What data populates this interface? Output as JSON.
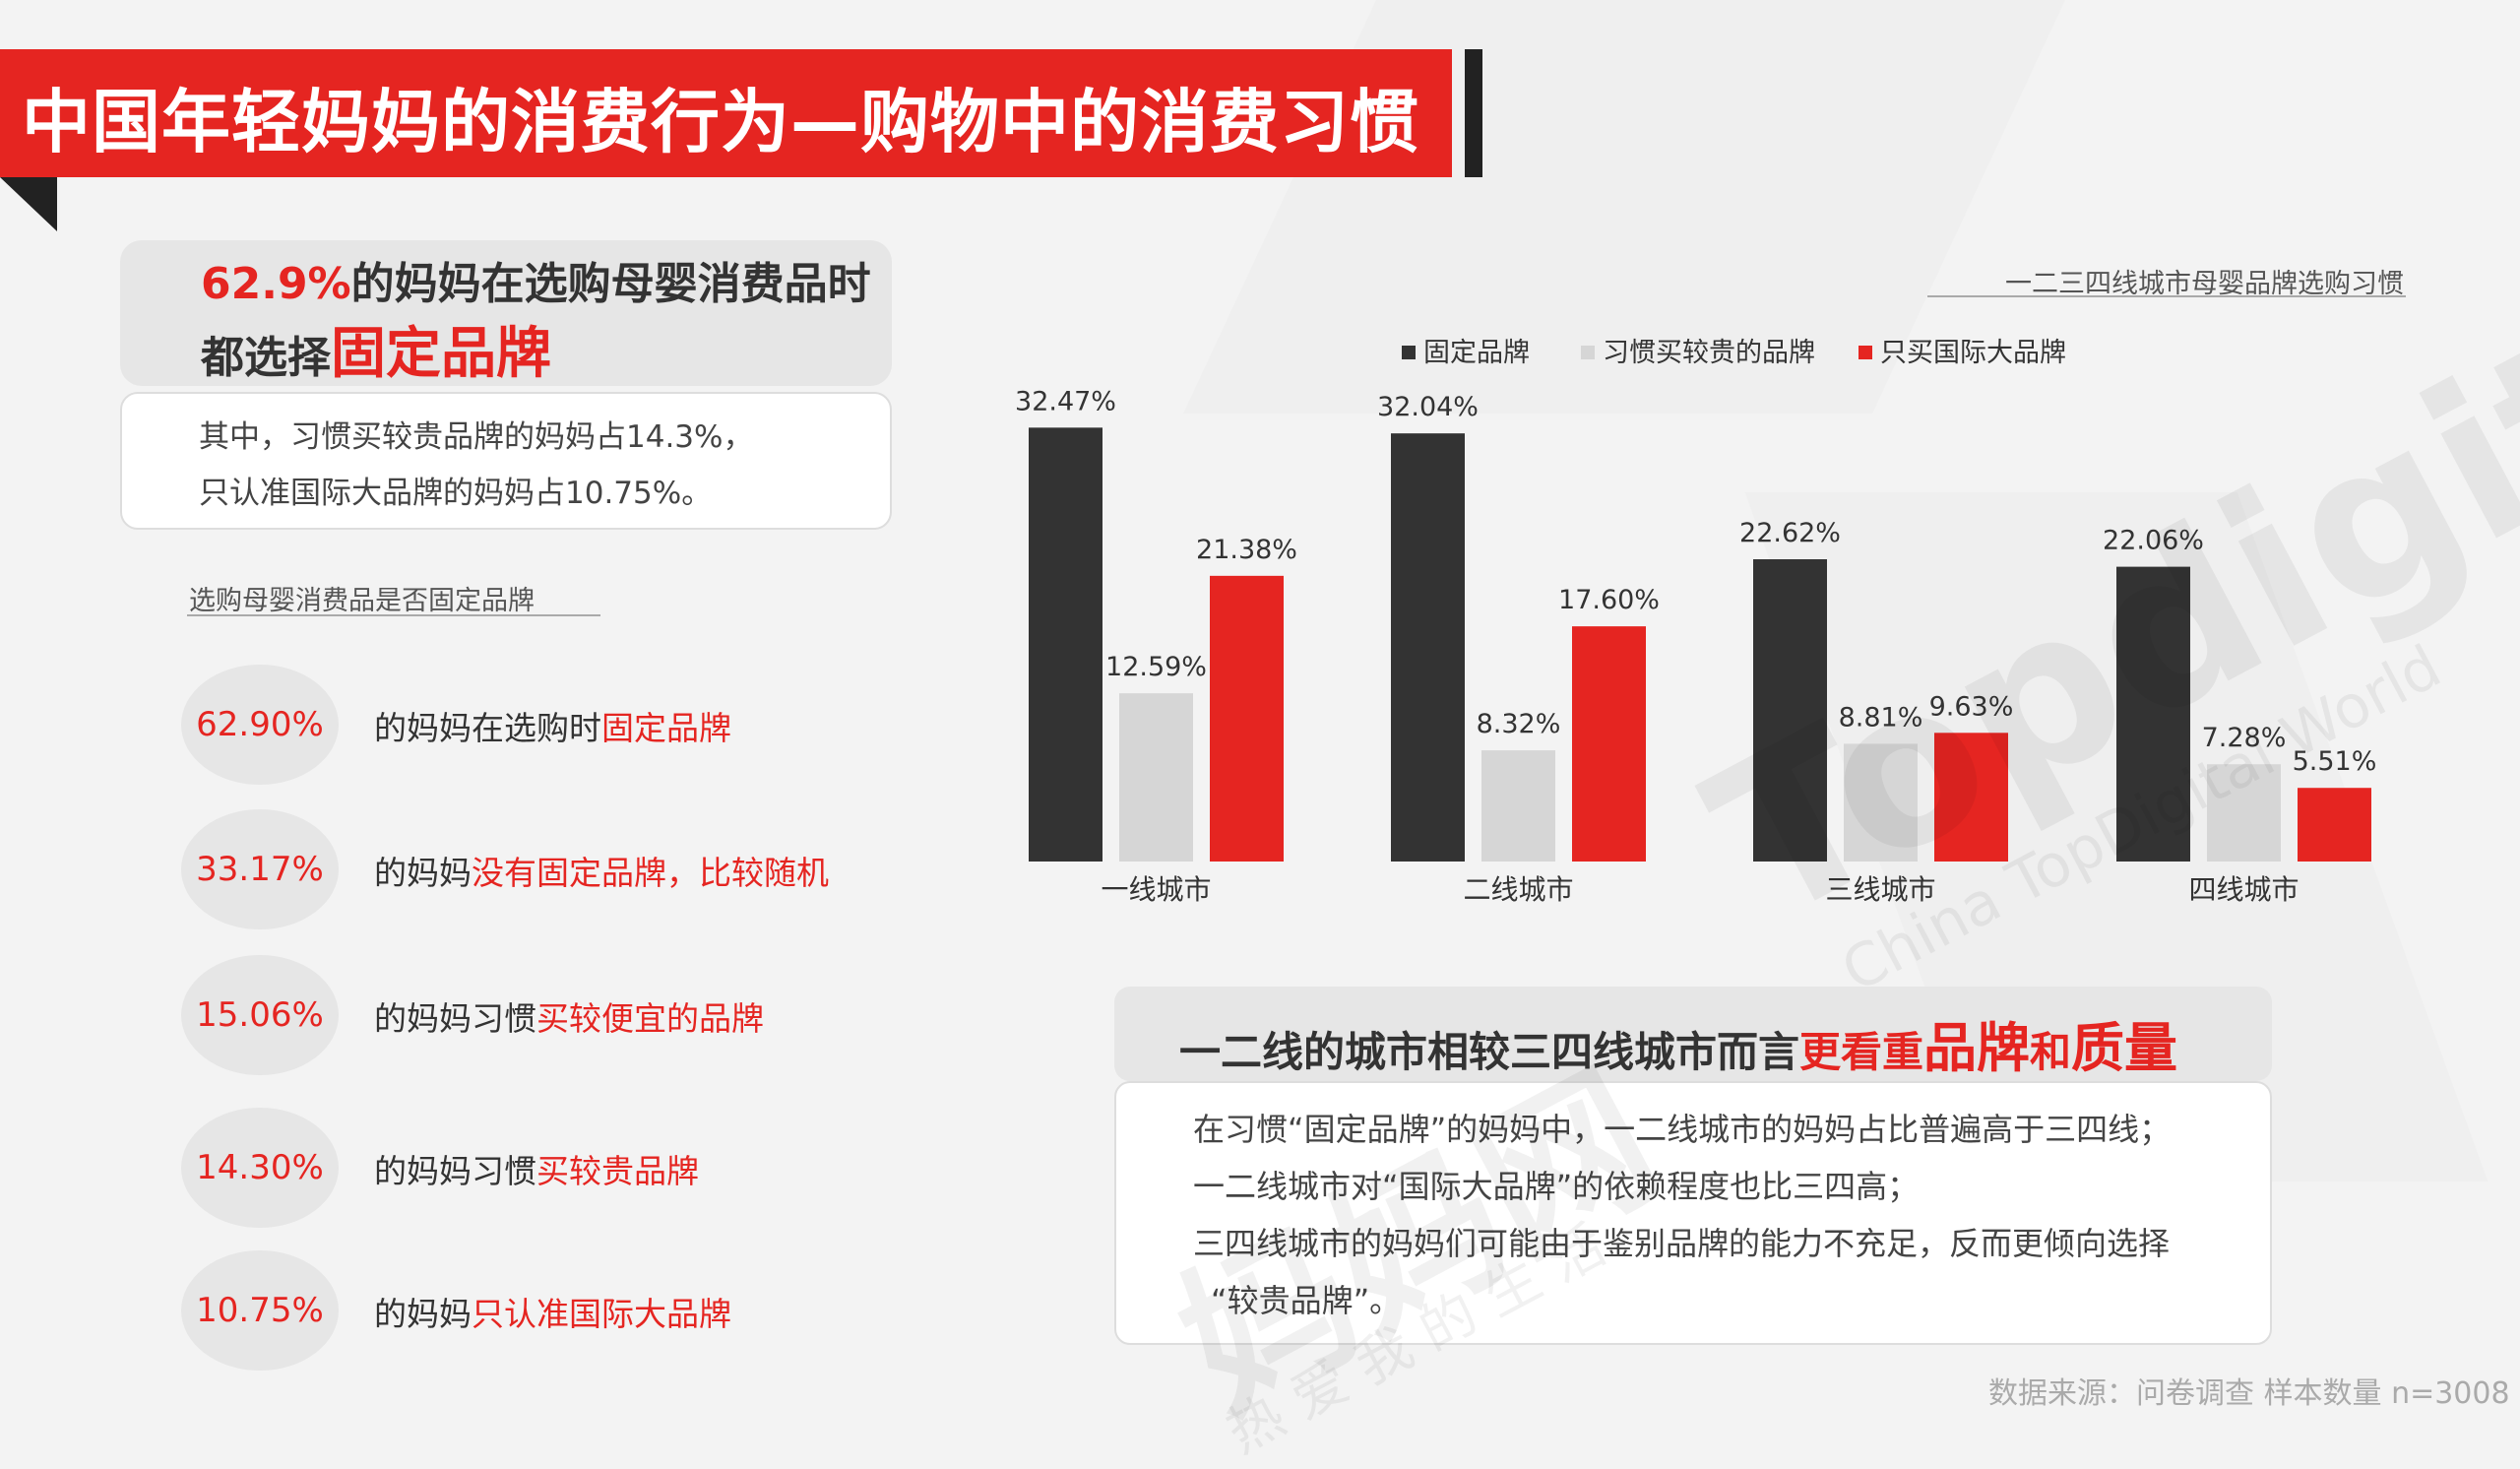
{
  "header": {
    "title": "中国年轻妈妈的消费行为—购物中的消费习惯"
  },
  "highlight": {
    "pct": "62.9%",
    "line1_rest": "的妈妈在选购母婴消费品时",
    "line2_prefix": "都选择",
    "line2_red": "固定品牌",
    "sub_line1": "其中，习惯买较贵品牌的妈妈占14.3%，",
    "sub_line2": "只认准国际大品牌的妈妈占10.75%。"
  },
  "left_section": {
    "label": "选购母婴消费品是否固定品牌",
    "items": [
      {
        "value": "62.90%",
        "prefix": "的妈妈在选购时",
        "red": "固定品牌"
      },
      {
        "value": "33.17%",
        "prefix": "的妈妈",
        "red": "没有固定品牌，比较随机"
      },
      {
        "value": "15.06%",
        "prefix": "的妈妈习惯",
        "red": "买较便宜的品牌"
      },
      {
        "value": "14.30%",
        "prefix": "的妈妈习惯",
        "red": "买较贵品牌"
      },
      {
        "value": "10.75%",
        "prefix": "的妈妈",
        "red": "只认准国际大品牌"
      }
    ]
  },
  "colors": {
    "accent": "#e52521",
    "dark": "#333333",
    "light": "#d6d6d6"
  },
  "chart_data": {
    "type": "bar",
    "title": "一二三四线城市母婴品牌选购习惯",
    "categories": [
      "一线城市",
      "二线城市",
      "三线城市",
      "四线城市"
    ],
    "series": [
      {
        "name": "固定品牌",
        "values": [
          32.47,
          32.04,
          22.62,
          22.06
        ],
        "labels": [
          "32.47%",
          "32.04%",
          "22.62%",
          "22.06%"
        ]
      },
      {
        "name": "习惯买较贵的品牌",
        "values": [
          12.59,
          8.32,
          8.81,
          7.28
        ],
        "labels": [
          "12.59%",
          "8.32%",
          "8.81%",
          "7.28%"
        ]
      },
      {
        "name": "只买国际大品牌",
        "values": [
          21.38,
          17.6,
          9.63,
          5.51
        ],
        "labels": [
          "21.38%",
          "17.60%",
          "9.63%",
          "5.51%"
        ]
      }
    ],
    "ylim": [
      0,
      35
    ],
    "legend_position": "top",
    "grid": false
  },
  "conclusion": {
    "prefix": "一二线的城市相较三四线城市而言",
    "red1": "更看重",
    "big1": "品牌",
    "red2": "和",
    "big2": "质量",
    "lines": [
      "在习惯“固定品牌”的妈妈中，一二线城市的妈妈占比普遍高于三四线；",
      "一二线城市对“国际大品牌”的依赖程度也比三四高；",
      "三四线城市的妈妈们可能由于鉴别品牌的能力不充足，反而更倾向选择",
      "“较贵品牌”。"
    ]
  },
  "footer": {
    "source": "数据来源：问卷调查 样本数量 n=3008"
  },
  "watermark": {
    "main": "Topdigital",
    "sub": "China TopDigital World",
    "cn": "妈妈网",
    "cn2": "热 爱 我 的 生 活"
  }
}
